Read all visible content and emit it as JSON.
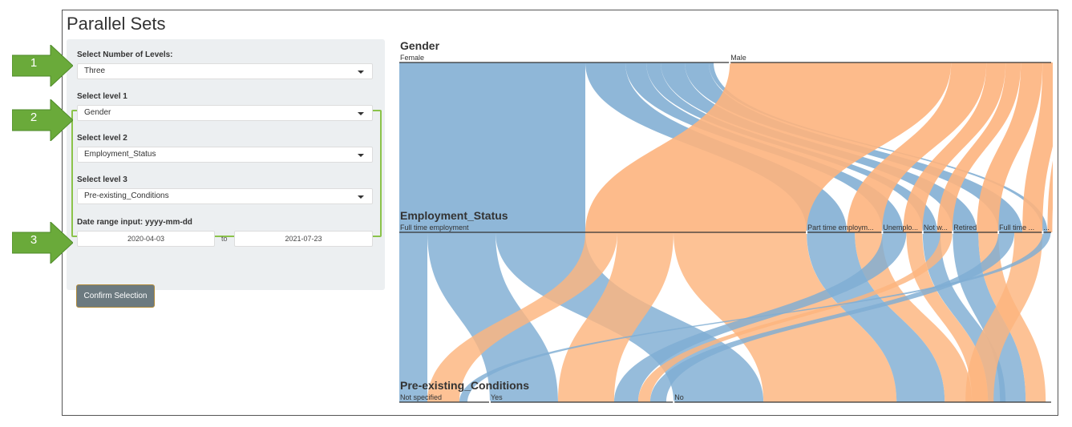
{
  "app": {
    "title": "Parallel Sets"
  },
  "sidebar": {
    "levels_label": "Select Number of Levels:",
    "levels_value": "Three",
    "level1_label": "Select level 1",
    "level1_value": "Gender",
    "level2_label": "Select level 2",
    "level2_value": "Employment_Status",
    "level3_label": "Select level 3",
    "level3_value": "Pre-existing_Conditions",
    "date_label": "Date range input: yyyy-mm-dd",
    "date_start": "2020-04-03",
    "date_sep": "to",
    "date_end": "2021-07-23",
    "confirm_label": "Confirm Selection"
  },
  "callouts": [
    {
      "number": "1"
    },
    {
      "number": "2"
    },
    {
      "number": "3"
    }
  ],
  "colors": {
    "female": "#7fadd3",
    "male": "#fdb47e",
    "panel": "#eceff1",
    "highlight": "#8bc34a",
    "arrow": "#6aaa3a"
  },
  "chart_data": {
    "type": "parallel_sets",
    "dimensions": [
      {
        "name": "Gender",
        "categories": [
          "Female",
          "Male"
        ],
        "proportions": [
          0.507,
          0.493
        ]
      },
      {
        "name": "Employment_Status",
        "categories": [
          "Full time employment",
          "Part time employm...",
          "Unemplo...",
          "Not w...",
          "Retired",
          "Full time ...",
          "..."
        ],
        "proportions": [
          0.625,
          0.116,
          0.062,
          0.046,
          0.07,
          0.068,
          0.013
        ]
      },
      {
        "name": "Pre-existing_Conditions",
        "categories": [
          "Not specified",
          "Yes",
          "No"
        ],
        "proportions": [
          0.139,
          0.282,
          0.579
        ]
      }
    ],
    "color_by": "Gender"
  }
}
